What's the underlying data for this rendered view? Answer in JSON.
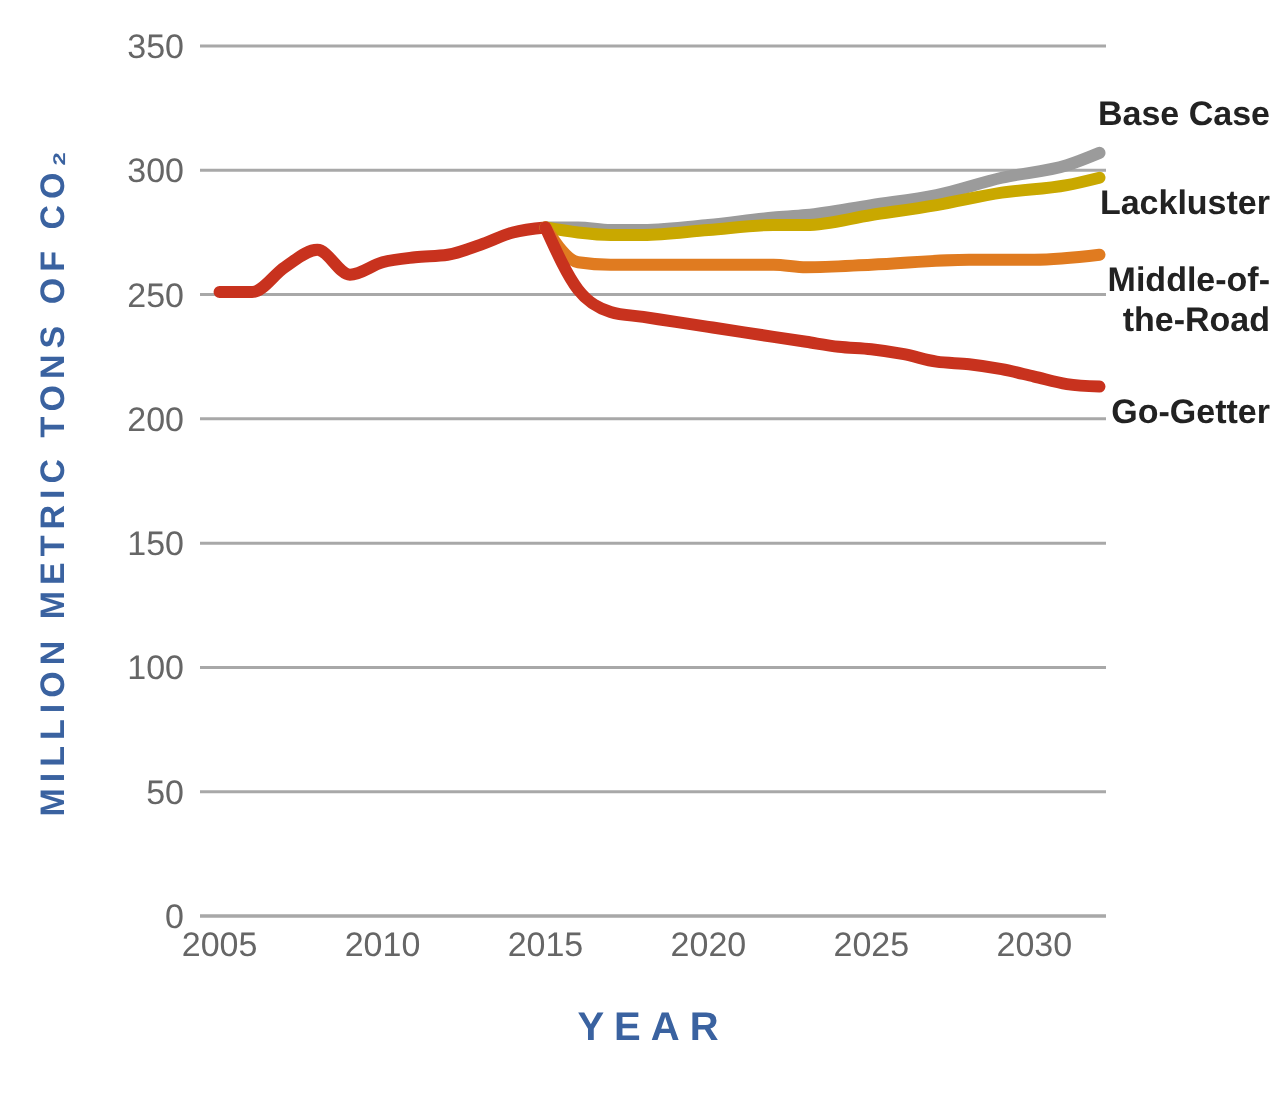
{
  "chart_data": {
    "type": "line",
    "xlabel": "YEAR",
    "ylabel": "MILLION METRIC TONS OF CO₂",
    "xlim": [
      2004.4,
      2032.2
    ],
    "xticks": [
      2005,
      2010,
      2015,
      2020,
      2025,
      2030
    ],
    "ylim": [
      0,
      350
    ],
    "yticks": [
      0,
      50,
      100,
      150,
      200,
      250,
      300,
      350
    ],
    "grid": "y",
    "marker": "none",
    "line_style": "solid",
    "series": [
      {
        "color": "#c8321e",
        "x": [
          2005,
          2006,
          2007,
          2008,
          2009,
          2010,
          2011,
          2012,
          2013,
          2014,
          2015
        ],
        "values": [
          251,
          251,
          261,
          268,
          258,
          263,
          265,
          266,
          270,
          275,
          277
        ]
      },
      {
        "name": "Base Case",
        "color": "#9b9b9b",
        "x": [
          2015,
          2016,
          2017,
          2018,
          2020,
          2022,
          2023,
          2025,
          2027,
          2029,
          2031,
          2032
        ],
        "values": [
          277,
          277,
          276,
          276,
          278,
          281,
          282,
          286,
          290,
          297,
          302,
          307
        ]
      },
      {
        "name": "Lackluster",
        "color": "#c9a800",
        "x": [
          2015,
          2016,
          2017,
          2018,
          2020,
          2022,
          2023,
          2025,
          2027,
          2029,
          2031,
          2032
        ],
        "values": [
          277,
          275,
          274,
          274,
          276,
          278,
          278,
          282,
          286,
          291,
          294,
          297
        ]
      },
      {
        "name": "Middle-of-the-Road",
        "color": "#e07b20",
        "x": [
          2015,
          2016,
          2017,
          2018,
          2020,
          2022,
          2023,
          2025,
          2028,
          2030,
          2032
        ],
        "values": [
          277,
          263,
          262,
          262,
          262,
          262,
          261,
          262,
          264,
          264,
          266
        ]
      },
      {
        "name": "Go-Getter",
        "color": "#c8321e",
        "x": [
          2015,
          2016,
          2017,
          2018,
          2019,
          2020,
          2021,
          2022,
          2023,
          2024,
          2025,
          2026,
          2027,
          2028,
          2029,
          2030,
          2031,
          2032
        ],
        "values": [
          277,
          252,
          243,
          241,
          239,
          237,
          235,
          233,
          231,
          229,
          228,
          226,
          223,
          222,
          220,
          217,
          214,
          213
        ]
      }
    ]
  }
}
